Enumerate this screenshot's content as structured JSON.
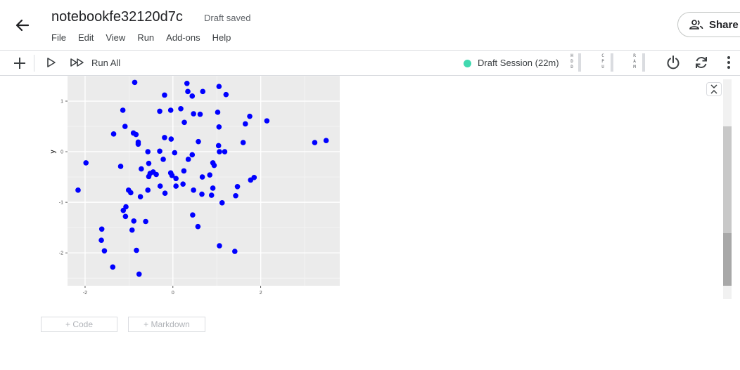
{
  "header": {
    "title": "notebookfe32120d7c",
    "status": "Draft saved",
    "menu": [
      "File",
      "Edit",
      "View",
      "Run",
      "Add-ons",
      "Help"
    ],
    "share_label": "Share"
  },
  "toolbar": {
    "run_all_label": "Run All",
    "session_label": "Draft Session (22m)",
    "meters": [
      {
        "label": "HDD",
        "letters": [
          "H",
          "D",
          "D"
        ]
      },
      {
        "label": "CPU",
        "letters": [
          "C",
          "P",
          "U"
        ]
      },
      {
        "label": "RAM",
        "letters": [
          "R",
          "A",
          "M"
        ]
      }
    ]
  },
  "cell_buttons": {
    "code_label": "+ Code",
    "markdown_label": "+ Markdown"
  },
  "colors": {
    "session_dot": "#41d9b0",
    "points": "#0000ff",
    "panel": "#ebebeb"
  },
  "chart_data": {
    "type": "scatter",
    "xlabel": "",
    "ylabel": "y",
    "xlim": [
      -2.4,
      3.8
    ],
    "ylim": [
      -2.65,
      1.5
    ],
    "xticks": [
      -2,
      0,
      2
    ],
    "yticks": [
      1,
      0,
      -1,
      -2
    ],
    "grid": true,
    "points": [
      [
        -0.87,
        1.37
      ],
      [
        0.32,
        1.35
      ],
      [
        1.05,
        1.29
      ],
      [
        0.68,
        1.19
      ],
      [
        0.34,
        1.19
      ],
      [
        1.21,
        1.13
      ],
      [
        -0.19,
        1.12
      ],
      [
        0.44,
        1.1
      ],
      [
        -1.14,
        0.82
      ],
      [
        -0.3,
        0.8
      ],
      [
        -0.05,
        0.82
      ],
      [
        0.18,
        0.85
      ],
      [
        0.47,
        0.75
      ],
      [
        0.62,
        0.74
      ],
      [
        1.02,
        0.78
      ],
      [
        1.75,
        0.7
      ],
      [
        2.14,
        0.61
      ],
      [
        0.26,
        0.58
      ],
      [
        1.65,
        0.55
      ],
      [
        -1.09,
        0.5
      ],
      [
        1.05,
        0.49
      ],
      [
        -1.35,
        0.35
      ],
      [
        -0.9,
        0.37
      ],
      [
        -0.84,
        0.34
      ],
      [
        -0.19,
        0.28
      ],
      [
        -0.04,
        0.25
      ],
      [
        -0.79,
        0.19
      ],
      [
        -0.79,
        0.15
      ],
      [
        0.58,
        0.2
      ],
      [
        1.6,
        0.18
      ],
      [
        3.23,
        0.18
      ],
      [
        3.49,
        0.22
      ],
      [
        1.04,
        0.12
      ],
      [
        -0.57,
        0.0
      ],
      [
        -0.3,
        0.01
      ],
      [
        0.04,
        -0.02
      ],
      [
        0.44,
        -0.06
      ],
      [
        1.06,
        0.0
      ],
      [
        1.18,
        0.0
      ],
      [
        -1.98,
        -0.22
      ],
      [
        -1.19,
        -0.29
      ],
      [
        -0.22,
        -0.15
      ],
      [
        0.35,
        -0.15
      ],
      [
        -0.55,
        -0.23
      ],
      [
        0.91,
        -0.22
      ],
      [
        0.94,
        -0.27
      ],
      [
        -0.72,
        -0.34
      ],
      [
        -0.45,
        -0.4
      ],
      [
        0.25,
        -0.38
      ],
      [
        -0.05,
        -0.42
      ],
      [
        -0.52,
        -0.43
      ],
      [
        -0.38,
        -0.45
      ],
      [
        -0.55,
        -0.49
      ],
      [
        -0.02,
        -0.47
      ],
      [
        0.07,
        -0.53
      ],
      [
        0.67,
        -0.5
      ],
      [
        0.84,
        -0.46
      ],
      [
        1.85,
        -0.51
      ],
      [
        1.77,
        -0.56
      ],
      [
        0.23,
        -0.64
      ],
      [
        -0.29,
        -0.68
      ],
      [
        0.07,
        -0.68
      ],
      [
        0.91,
        -0.72
      ],
      [
        1.47,
        -0.69
      ],
      [
        -0.57,
        -0.76
      ],
      [
        -1.01,
        -0.76
      ],
      [
        -2.16,
        -0.76
      ],
      [
        -0.96,
        -0.81
      ],
      [
        0.47,
        -0.76
      ],
      [
        -0.18,
        -0.82
      ],
      [
        0.66,
        -0.84
      ],
      [
        -0.74,
        -0.89
      ],
      [
        0.88,
        -0.86
      ],
      [
        1.43,
        -0.87
      ],
      [
        1.12,
        -1.01
      ],
      [
        -1.07,
        -1.09
      ],
      [
        -1.13,
        -1.16
      ],
      [
        -1.08,
        -1.28
      ],
      [
        0.45,
        -1.25
      ],
      [
        -0.89,
        -1.37
      ],
      [
        -0.62,
        -1.38
      ],
      [
        0.57,
        -1.48
      ],
      [
        -1.62,
        -1.53
      ],
      [
        -0.93,
        -1.55
      ],
      [
        -1.63,
        -1.75
      ],
      [
        1.06,
        -1.86
      ],
      [
        -1.56,
        -1.96
      ],
      [
        -0.83,
        -1.95
      ],
      [
        1.41,
        -1.97
      ],
      [
        -1.37,
        -2.28
      ],
      [
        -0.77,
        -2.42
      ]
    ]
  }
}
